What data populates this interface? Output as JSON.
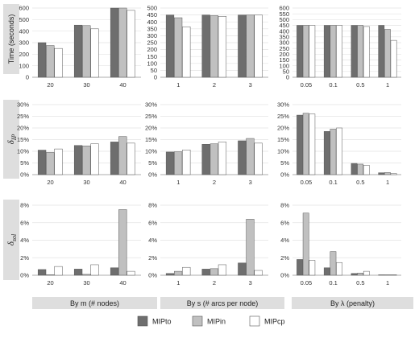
{
  "row_labels": [
    {
      "main": "Time (seconds)",
      "sub": ""
    },
    {
      "main": "δ",
      "sub": "IP"
    },
    {
      "main": "δ",
      "sub": "sol"
    }
  ],
  "column_labels": [
    "By m (# nodes)",
    "By s (# arcs per node)",
    "By λ (penalty)"
  ],
  "legend": [
    {
      "name": "MIPto",
      "color": "#6e6e6e"
    },
    {
      "name": "MIPin",
      "color": "#c0c0c0"
    },
    {
      "name": "MIPcp",
      "color": "#ffffff"
    }
  ],
  "chart_data": [
    {
      "type": "bar",
      "row": 0,
      "col": 0,
      "categories": [
        "20",
        "30",
        "40"
      ],
      "ylim": [
        0,
        600
      ],
      "yticks": [
        "0",
        "100",
        "200",
        "300",
        "400",
        "500",
        "600"
      ],
      "series": [
        {
          "name": "MIPto",
          "values": [
            300,
            452,
            600
          ]
        },
        {
          "name": "MIPin",
          "values": [
            275,
            448,
            600
          ]
        },
        {
          "name": "MIPcp",
          "values": [
            250,
            420,
            580
          ]
        }
      ]
    },
    {
      "type": "bar",
      "row": 0,
      "col": 1,
      "categories": [
        "1",
        "2",
        "3"
      ],
      "ylim": [
        0,
        500
      ],
      "yticks": [
        "0",
        "50",
        "100",
        "150",
        "200",
        "250",
        "300",
        "350",
        "400",
        "450",
        "500"
      ],
      "series": [
        {
          "name": "MIPto",
          "values": [
            450,
            450,
            450
          ]
        },
        {
          "name": "MIPin",
          "values": [
            430,
            445,
            450
          ]
        },
        {
          "name": "MIPcp",
          "values": [
            365,
            440,
            450
          ]
        }
      ]
    },
    {
      "type": "bar",
      "row": 0,
      "col": 2,
      "categories": [
        "0.05",
        "0.1",
        "0.5",
        "1"
      ],
      "ylim": [
        0,
        600
      ],
      "yticks": [
        "0",
        "50",
        "100",
        "150",
        "200",
        "250",
        "300",
        "350",
        "400",
        "450",
        "500",
        "550",
        "600"
      ],
      "series": [
        {
          "name": "MIPto",
          "values": [
            450,
            450,
            450,
            450
          ]
        },
        {
          "name": "MIPin",
          "values": [
            450,
            450,
            450,
            415
          ]
        },
        {
          "name": "MIPcp",
          "values": [
            450,
            450,
            440,
            320
          ]
        }
      ]
    },
    {
      "type": "bar",
      "row": 1,
      "col": 0,
      "categories": [
        "20",
        "30",
        "40"
      ],
      "ylim": [
        0,
        30
      ],
      "yticks": [
        "0%",
        "5%",
        "10%",
        "15%",
        "20%",
        "25%",
        "30%"
      ],
      "series": [
        {
          "name": "MIPto",
          "values": [
            10.5,
            12.5,
            14
          ]
        },
        {
          "name": "MIPin",
          "values": [
            9.5,
            12.3,
            16.3
          ]
        },
        {
          "name": "MIPcp",
          "values": [
            11,
            13.2,
            13.5
          ]
        }
      ]
    },
    {
      "type": "bar",
      "row": 1,
      "col": 1,
      "categories": [
        "1",
        "2",
        "3"
      ],
      "ylim": [
        0,
        30
      ],
      "yticks": [
        "0%",
        "5%",
        "10%",
        "15%",
        "20%",
        "25%",
        "30%"
      ],
      "series": [
        {
          "name": "MIPto",
          "values": [
            9.7,
            13,
            14.5
          ]
        },
        {
          "name": "MIPin",
          "values": [
            9.8,
            13.2,
            15.5
          ]
        },
        {
          "name": "MIPcp",
          "values": [
            10.6,
            14,
            13.5
          ]
        }
      ]
    },
    {
      "type": "bar",
      "row": 1,
      "col": 2,
      "categories": [
        "0.05",
        "0.1",
        "0.5",
        "1"
      ],
      "ylim": [
        0,
        30
      ],
      "yticks": [
        "0%",
        "5%",
        "10%",
        "15%",
        "20%",
        "25%",
        "30%"
      ],
      "series": [
        {
          "name": "MIPto",
          "values": [
            25.5,
            18.5,
            4.8,
            0.8
          ]
        },
        {
          "name": "MIPin",
          "values": [
            26.3,
            19.5,
            4.5,
            0.9
          ]
        },
        {
          "name": "MIPcp",
          "values": [
            26,
            20,
            4,
            0.5
          ]
        }
      ]
    },
    {
      "type": "bar",
      "row": 2,
      "col": 0,
      "categories": [
        "20",
        "30",
        "40"
      ],
      "ylim": [
        0,
        8
      ],
      "yticks": [
        "0%",
        "2%",
        "4%",
        "6%",
        "8%"
      ],
      "series": [
        {
          "name": "MIPto",
          "values": [
            0.65,
            0.7,
            0.85
          ]
        },
        {
          "name": "MIPin",
          "values": [
            0.05,
            0.1,
            7.5
          ]
        },
        {
          "name": "MIPcp",
          "values": [
            1.0,
            1.2,
            0.45
          ]
        }
      ]
    },
    {
      "type": "bar",
      "row": 2,
      "col": 1,
      "categories": [
        "1",
        "2",
        "3"
      ],
      "ylim": [
        0,
        8
      ],
      "yticks": [
        "0%",
        "2%",
        "4%",
        "6%",
        "8%"
      ],
      "series": [
        {
          "name": "MIPto",
          "values": [
            0.2,
            0.7,
            1.4
          ]
        },
        {
          "name": "MIPin",
          "values": [
            0.45,
            0.75,
            6.4
          ]
        },
        {
          "name": "MIPcp",
          "values": [
            0.9,
            1.2,
            0.55
          ]
        }
      ]
    },
    {
      "type": "bar",
      "row": 2,
      "col": 2,
      "categories": [
        "0.05",
        "0.1",
        "0.5",
        "1"
      ],
      "ylim": [
        0,
        8
      ],
      "yticks": [
        "0%",
        "2%",
        "4%",
        "6%",
        "8%"
      ],
      "series": [
        {
          "name": "MIPto",
          "values": [
            1.8,
            0.85,
            0.2,
            0.05
          ]
        },
        {
          "name": "MIPin",
          "values": [
            7.1,
            2.7,
            0.25,
            0.05
          ]
        },
        {
          "name": "MIPcp",
          "values": [
            1.7,
            1.45,
            0.45,
            0.05
          ]
        }
      ]
    }
  ]
}
